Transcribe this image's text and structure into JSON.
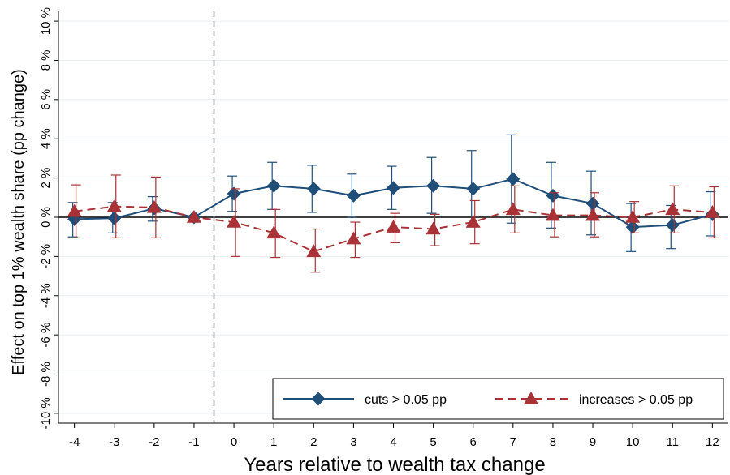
{
  "chart_data": {
    "type": "line",
    "title": "",
    "xlabel": "Years relative to wealth tax change",
    "ylabel": "Effect on top 1% wealth share (pp change)",
    "x": [
      -4,
      -3,
      -2,
      -1,
      0,
      1,
      2,
      3,
      4,
      5,
      6,
      7,
      8,
      9,
      10,
      11,
      12
    ],
    "xticks": [
      "-4",
      "-3",
      "-2",
      "-1",
      "0",
      "1",
      "2",
      "3",
      "4",
      "5",
      "6",
      "7",
      "8",
      "9",
      "10",
      "11",
      "12"
    ],
    "xlim": [
      -4.4,
      12.4
    ],
    "ylim": [
      -10.5,
      10.5
    ],
    "yticks": [
      -10,
      -8,
      -6,
      -4,
      -2,
      0,
      2,
      4,
      6,
      8,
      10
    ],
    "yticklabels": [
      "-10 %",
      "-8 %",
      "-6 %",
      "-4 %",
      "-2 %",
      "0 %",
      "2 %",
      "4 %",
      "6 %",
      "8 %",
      "10 %"
    ],
    "grid": true,
    "reference_line_y": 0,
    "event_line_x": -0.5,
    "legend_position": "bottom-right",
    "series": [
      {
        "name": "cuts > 0.05 pp",
        "color": "#1f4e79",
        "marker": "diamond",
        "line_style": "solid",
        "values": [
          -0.1,
          -0.05,
          0.45,
          0.0,
          1.2,
          1.6,
          1.45,
          1.1,
          1.5,
          1.6,
          1.45,
          1.95,
          1.1,
          0.7,
          -0.5,
          -0.4,
          0.15
        ],
        "ci_low": [
          -1.0,
          -0.8,
          -0.2,
          0.0,
          0.3,
          0.4,
          0.25,
          0.0,
          0.4,
          0.2,
          -0.5,
          -0.3,
          -0.55,
          -0.9,
          -1.75,
          -1.6,
          -0.95
        ],
        "ci_high": [
          0.75,
          0.75,
          1.05,
          0.0,
          2.1,
          2.8,
          2.65,
          2.2,
          2.6,
          3.05,
          3.4,
          4.2,
          2.8,
          2.35,
          0.7,
          0.6,
          1.3
        ]
      },
      {
        "name": "increases > 0.05 pp",
        "color": "#a83236",
        "marker": "triangle",
        "line_style": "dashed",
        "values": [
          0.3,
          0.55,
          0.5,
          0.0,
          -0.25,
          -0.8,
          -1.75,
          -1.1,
          -0.5,
          -0.6,
          -0.25,
          0.4,
          0.1,
          0.1,
          0.0,
          0.4,
          0.25
        ],
        "ci_low": [
          -1.05,
          -1.05,
          -1.05,
          0.0,
          -2.0,
          -2.05,
          -2.8,
          -2.05,
          -1.3,
          -1.45,
          -1.35,
          -0.8,
          -1.0,
          -1.0,
          -0.8,
          -0.8,
          -1.05
        ],
        "ci_high": [
          1.65,
          2.15,
          2.05,
          0.0,
          1.45,
          0.4,
          -0.6,
          -0.25,
          0.2,
          0.15,
          0.85,
          1.6,
          1.25,
          1.25,
          0.8,
          1.6,
          1.55
        ]
      }
    ]
  }
}
